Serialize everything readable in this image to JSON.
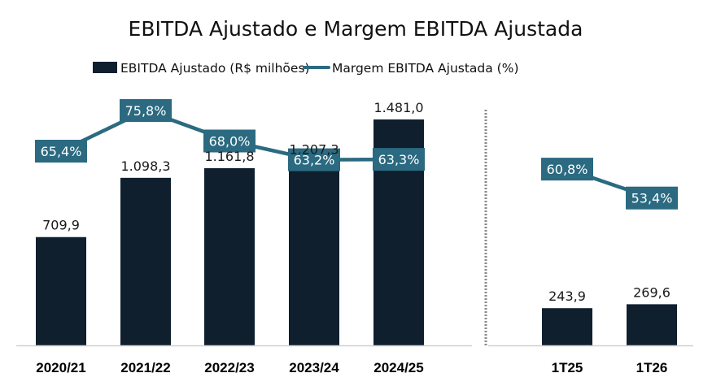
{
  "chart_data": {
    "type": "bar",
    "title": "EBITDA Ajustado e Margem EBITDA Ajustada",
    "xlabel": "",
    "ylabel": "",
    "grid": false,
    "legend_position": "top",
    "categories": [
      "2020/21",
      "2021/22",
      "2022/23",
      "2023/24",
      "2024/25",
      "1T25",
      "1T26"
    ],
    "category_groups": [
      {
        "name": "annual",
        "categories": [
          "2020/21",
          "2021/22",
          "2022/23",
          "2023/24",
          "2024/25"
        ]
      },
      {
        "name": "quarterly",
        "categories": [
          "1T25",
          "1T26"
        ]
      }
    ],
    "series": [
      {
        "name": "EBITDA Ajustado (R$ milhões)",
        "type": "bar",
        "color": "#0f1f2e",
        "values": [
          709.9,
          1098.3,
          1161.8,
          1207.3,
          1481.0,
          243.9,
          269.6
        ],
        "labels": [
          "709,9",
          "1.098,3",
          "1.161,8",
          "1.207,3",
          "1.481,0",
          "243,9",
          "269,6"
        ]
      },
      {
        "name": "Margem EBITDA Ajustada (%)",
        "type": "line",
        "color": "#2b6a80",
        "values": [
          65.4,
          75.8,
          68.0,
          63.2,
          63.3,
          60.8,
          53.4
        ],
        "labels": [
          "65,4%",
          "75,8%",
          "68,0%",
          "63,2%",
          "63,3%",
          "60,8%",
          "53,4%"
        ],
        "segments": [
          [
            0,
            4
          ],
          [
            5,
            6
          ]
        ]
      }
    ],
    "separator_after_category": "2024/25",
    "y_bar_range": [
      0,
      1600
    ],
    "y_line_range": [
      0,
      100
    ]
  },
  "legend": {
    "bar_label": "EBITDA Ajustado (R$ milhões)",
    "line_label": "Margem EBITDA Ajustada (%)"
  },
  "colors": {
    "bar": "#0f1f2e",
    "line": "#2b6a80",
    "axis": "#d0d0d0",
    "separator": "#8a8a8a"
  }
}
